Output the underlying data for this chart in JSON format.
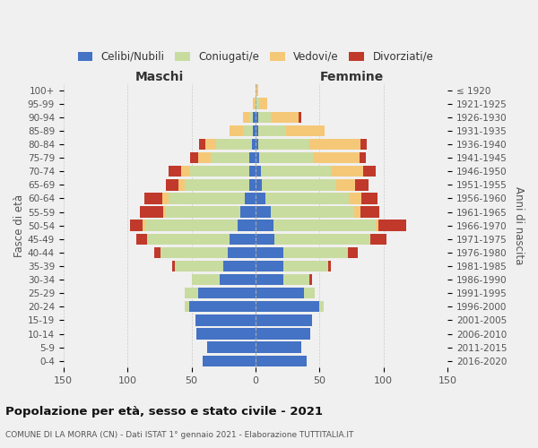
{
  "age_groups": [
    "0-4",
    "5-9",
    "10-14",
    "15-19",
    "20-24",
    "25-29",
    "30-34",
    "35-39",
    "40-44",
    "45-49",
    "50-54",
    "55-59",
    "60-64",
    "65-69",
    "70-74",
    "75-79",
    "80-84",
    "85-89",
    "90-94",
    "95-99",
    "100+"
  ],
  "birth_years": [
    "2016-2020",
    "2011-2015",
    "2006-2010",
    "2001-2005",
    "1996-2000",
    "1991-1995",
    "1986-1990",
    "1981-1985",
    "1976-1980",
    "1971-1975",
    "1966-1970",
    "1961-1965",
    "1956-1960",
    "1951-1955",
    "1946-1950",
    "1941-1945",
    "1936-1940",
    "1931-1935",
    "1926-1930",
    "1921-1925",
    "≤ 1920"
  ],
  "colors": {
    "celibi": "#4472c4",
    "coniugati": "#c8dca0",
    "vedovi": "#f5c878",
    "divorziati": "#c0392b"
  },
  "maschi": {
    "celibi": [
      41,
      38,
      46,
      47,
      52,
      45,
      28,
      25,
      22,
      20,
      14,
      12,
      8,
      5,
      5,
      5,
      3,
      2,
      2,
      0,
      0
    ],
    "coniugati": [
      0,
      0,
      0,
      0,
      3,
      10,
      22,
      38,
      52,
      65,
      72,
      58,
      60,
      50,
      46,
      30,
      28,
      8,
      3,
      0,
      0
    ],
    "vedovi": [
      0,
      0,
      0,
      0,
      0,
      0,
      0,
      0,
      0,
      0,
      2,
      2,
      5,
      5,
      7,
      10,
      8,
      10,
      5,
      2,
      0
    ],
    "divorziati": [
      0,
      0,
      0,
      0,
      0,
      0,
      0,
      2,
      5,
      8,
      10,
      18,
      14,
      10,
      10,
      6,
      5,
      0,
      0,
      0,
      0
    ]
  },
  "femmine": {
    "celibi": [
      40,
      36,
      43,
      44,
      50,
      38,
      22,
      22,
      22,
      15,
      14,
      12,
      8,
      5,
      4,
      3,
      2,
      2,
      2,
      0,
      0
    ],
    "coniugati": [
      0,
      0,
      0,
      0,
      3,
      8,
      20,
      35,
      50,
      75,
      80,
      65,
      65,
      58,
      55,
      42,
      40,
      22,
      10,
      3,
      0
    ],
    "vedovi": [
      0,
      0,
      0,
      0,
      0,
      0,
      0,
      0,
      0,
      0,
      2,
      5,
      10,
      15,
      25,
      36,
      40,
      30,
      22,
      6,
      2
    ],
    "divorziati": [
      0,
      0,
      0,
      0,
      0,
      0,
      2,
      2,
      8,
      12,
      22,
      15,
      12,
      10,
      10,
      5,
      5,
      0,
      2,
      0,
      0
    ]
  },
  "title": "Popolazione per età, sesso e stato civile - 2021",
  "subtitle": "COMUNE DI LA MORRA (CN) - Dati ISTAT 1° gennaio 2021 - Elaborazione TUTTITALIA.IT",
  "xlabel_maschi": "Maschi",
  "xlabel_femmine": "Femmine",
  "ylabel": "Fasce di età",
  "ylabel_right": "Anni di nascita",
  "xlim": 150,
  "legend_labels": [
    "Celibi/Nubili",
    "Coniugati/e",
    "Vedovi/e",
    "Divorziati/e"
  ],
  "background_color": "#f0f0f0"
}
